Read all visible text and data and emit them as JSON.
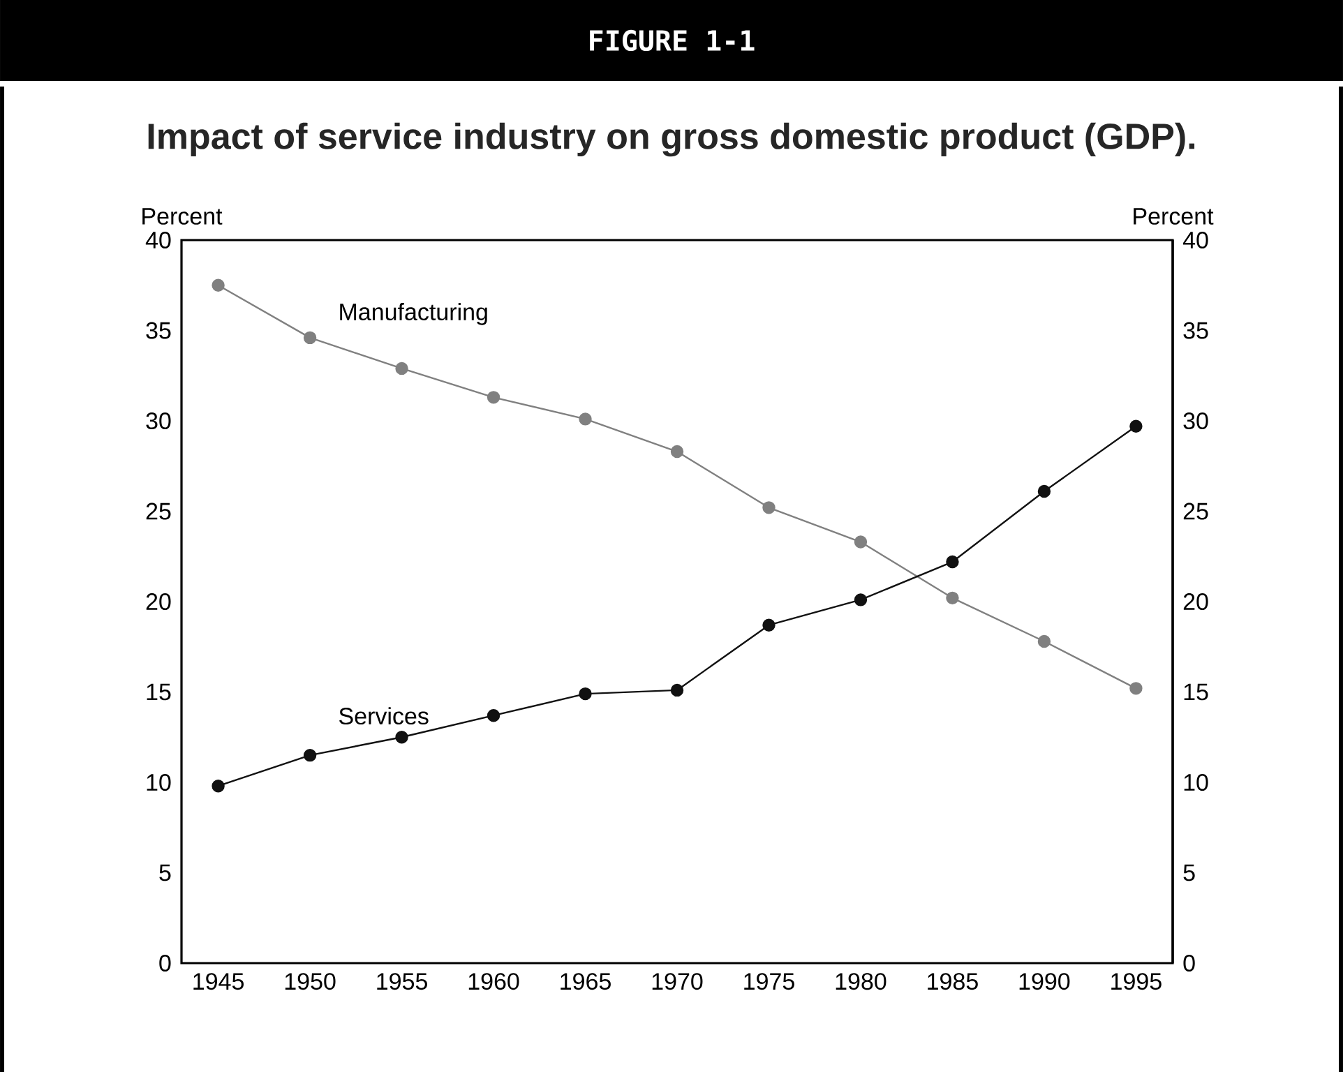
{
  "chart_data": {
    "type": "line",
    "title": "FIGURE 1-1",
    "subtitle": "Impact of service industry on gross domestic product (GDP).",
    "ylabel": "Percent",
    "y2label": "Percent",
    "x": [
      1945,
      1950,
      1955,
      1960,
      1965,
      1970,
      1975,
      1980,
      1985,
      1990,
      1995
    ],
    "series": [
      {
        "name": "Manufacturing",
        "color": "#808080",
        "values": [
          37.5,
          34.6,
          32.9,
          31.3,
          30.1,
          28.3,
          25.2,
          23.3,
          20.2,
          17.8,
          15.2
        ]
      },
      {
        "name": "Services",
        "color": "#111111",
        "values": [
          9.8,
          11.5,
          12.5,
          13.7,
          14.9,
          15.1,
          18.7,
          20.1,
          22.2,
          26.1,
          29.7
        ]
      }
    ],
    "xlim": [
      1943,
      1997
    ],
    "xticks": [
      1945,
      1950,
      1955,
      1960,
      1965,
      1970,
      1975,
      1980,
      1985,
      1990,
      1995
    ],
    "ylim": [
      0,
      40
    ],
    "yticks": [
      0,
      5,
      10,
      15,
      20,
      25,
      30,
      35,
      40
    ],
    "y2lim": [
      0,
      40
    ],
    "y2ticks": [
      0,
      5,
      10,
      15,
      20,
      25,
      30,
      35,
      40
    ],
    "marker": "circle",
    "line_style": "solid",
    "grid": false
  }
}
